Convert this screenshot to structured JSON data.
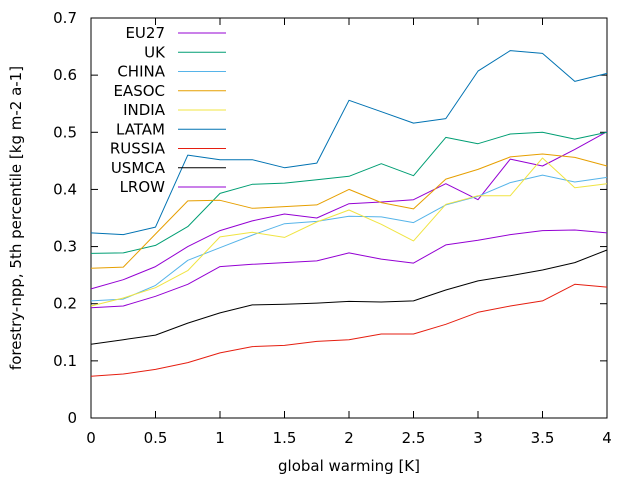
{
  "chart_data": {
    "type": "line",
    "title": "",
    "xlabel": "global warming [K]",
    "ylabel": "forestry-npp, 5th percentile [kg m-2 a-1]",
    "xlim": [
      0,
      4
    ],
    "ylim": [
      0,
      0.7
    ],
    "xticks": [
      "0",
      "0.5",
      "1",
      "1.5",
      "2",
      "2.5",
      "3",
      "3.5",
      "4"
    ],
    "yticks": [
      "0",
      "0.1",
      "0.2",
      "0.3",
      "0.4",
      "0.5",
      "0.6",
      "0.7"
    ],
    "grid": false,
    "legend_position": "top-left",
    "x": [
      0,
      0.25,
      0.5,
      0.75,
      1,
      1.25,
      1.5,
      1.75,
      2,
      2.25,
      2.5,
      2.75,
      3,
      3.25,
      3.5,
      3.75,
      4
    ],
    "series": [
      {
        "name": "EU27",
        "color": "#9400d3",
        "values": [
          0.226,
          0.242,
          0.265,
          0.3,
          0.328,
          0.345,
          0.357,
          0.35,
          0.375,
          0.378,
          0.382,
          0.41,
          0.382,
          0.453,
          0.441,
          0.47,
          0.501
        ]
      },
      {
        "name": "UK",
        "color": "#009e73",
        "values": [
          0.288,
          0.289,
          0.302,
          0.335,
          0.393,
          0.409,
          0.411,
          0.417,
          0.423,
          0.445,
          0.424,
          0.491,
          0.48,
          0.497,
          0.5,
          0.488,
          0.5
        ]
      },
      {
        "name": "CHINA",
        "color": "#56b4e9",
        "values": [
          0.205,
          0.208,
          0.232,
          0.276,
          0.298,
          0.32,
          0.34,
          0.344,
          0.353,
          0.352,
          0.342,
          0.373,
          0.388,
          0.412,
          0.425,
          0.413,
          0.421
        ]
      },
      {
        "name": "EASOC",
        "color": "#e69f00",
        "values": [
          0.262,
          0.264,
          0.322,
          0.38,
          0.381,
          0.367,
          0.37,
          0.373,
          0.4,
          0.377,
          0.366,
          0.418,
          0.435,
          0.457,
          0.462,
          0.456,
          0.441
        ]
      },
      {
        "name": "INDIA",
        "color": "#f0e442",
        "values": [
          0.196,
          0.21,
          0.228,
          0.258,
          0.317,
          0.325,
          0.316,
          0.343,
          0.364,
          0.339,
          0.31,
          0.374,
          0.389,
          0.389,
          0.455,
          0.403,
          0.41
        ]
      },
      {
        "name": "LATAM",
        "color": "#0072b2",
        "values": [
          0.324,
          0.321,
          0.334,
          0.46,
          0.452,
          0.452,
          0.438,
          0.446,
          0.556,
          0.536,
          0.516,
          0.524,
          0.607,
          0.643,
          0.638,
          0.589,
          0.603
        ]
      },
      {
        "name": "RUSSIA",
        "color": "#e51e10",
        "values": [
          0.073,
          0.077,
          0.085,
          0.097,
          0.114,
          0.125,
          0.127,
          0.134,
          0.137,
          0.147,
          0.147,
          0.164,
          0.185,
          0.196,
          0.205,
          0.234,
          0.229
        ]
      },
      {
        "name": "USMCA",
        "color": "#000000",
        "values": [
          0.129,
          0.137,
          0.145,
          0.166,
          0.184,
          0.198,
          0.199,
          0.201,
          0.204,
          0.203,
          0.205,
          0.224,
          0.24,
          0.249,
          0.259,
          0.272,
          0.294
        ]
      },
      {
        "name": "LROW",
        "color": "#9400d3",
        "values": [
          0.193,
          0.196,
          0.213,
          0.234,
          0.265,
          0.269,
          0.272,
          0.275,
          0.289,
          0.278,
          0.271,
          0.303,
          0.311,
          0.321,
          0.328,
          0.329,
          0.324
        ]
      }
    ]
  }
}
